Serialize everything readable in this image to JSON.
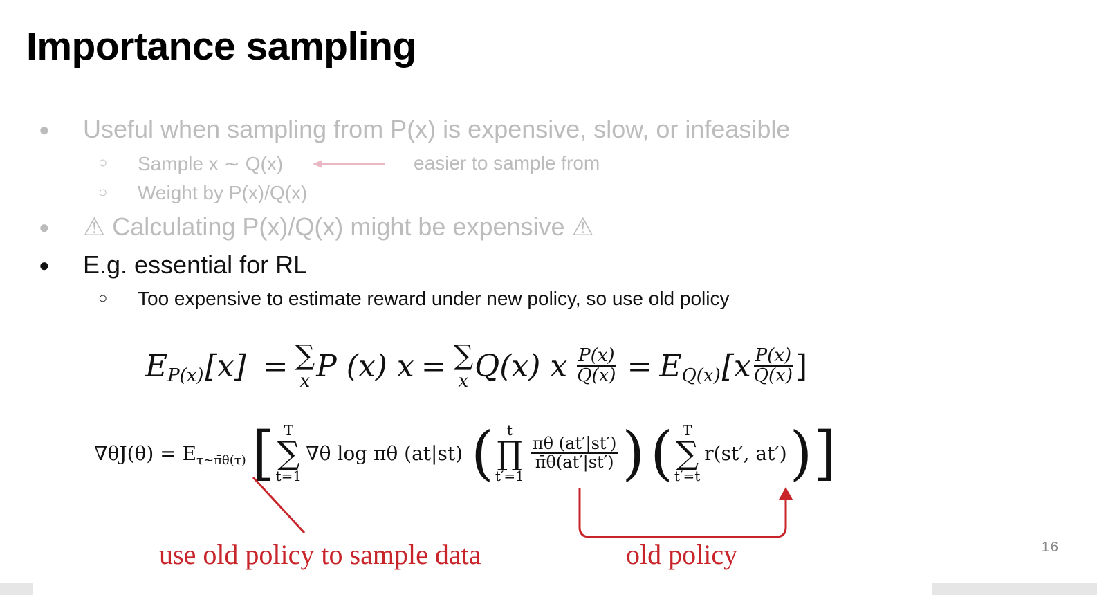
{
  "slide": {
    "title": "Importance sampling",
    "page_number": "16",
    "bullets": [
      {
        "text": "Useful when sampling from P(x) is expensive, slow, or infeasible",
        "style": "faded",
        "subs": [
          {
            "text": "Sample x ∼ Q(x)",
            "note": "easier to sample from"
          },
          {
            "text": "Weight by P(x)/Q(x)"
          }
        ]
      },
      {
        "text": "⚠ Calculating P(x)/Q(x) might be expensive ⚠",
        "style": "faded"
      },
      {
        "text": "E.g. essential for RL",
        "style": "dark",
        "subs": [
          {
            "text": "Too expensive to estimate reward under new policy, so use old policy"
          }
        ]
      }
    ],
    "bullet_glyph": "●",
    "sub_glyph": "○",
    "equation1": {
      "lhs_E": "E",
      "lhs_sub": "P(x)",
      "lhs_arg": "[x]",
      "eq": "=",
      "sum": "∑",
      "sum_index": "x",
      "term1": "P (x) x",
      "term2": "Q(x) x",
      "frac_num": "P(x)",
      "frac_den": "Q(x)",
      "rhs_E": "E",
      "rhs_sub": "Q(x)",
      "rhs_open": "[x",
      "rhs_close": "]"
    },
    "equation2": {
      "lhs": "∇θJ(θ) = E",
      "lhs_sub": "τ∼π̄θ(τ)",
      "sum1_top": "T",
      "sum1_bot": "t=1",
      "grad_term": "∇θ log πθ (at|st)",
      "prod_top": "t",
      "prod_bot": "t′=1",
      "ratio_num": "πθ (at′|st′)",
      "ratio_den": "π̄θ(at′|st′)",
      "sum2_top": "T",
      "sum2_bot": "t′=t",
      "reward_term": "r(st′, at′)"
    },
    "annotations": {
      "left": "use old policy to sample data",
      "right": "old policy",
      "color": "#c8252b"
    },
    "colors": {
      "faded_text": "#bcbcbc",
      "dark_text": "#111111",
      "arrow_pink": "#e8b8c4"
    }
  }
}
